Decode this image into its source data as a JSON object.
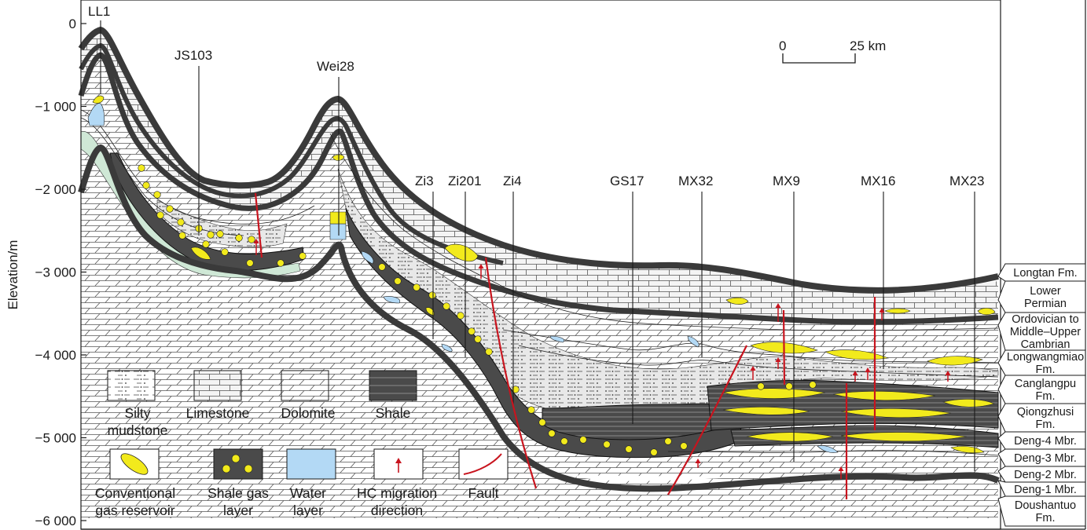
{
  "y_axis": {
    "label": "Elevation/m",
    "ticks": [
      "0",
      "−1 000",
      "−2 000",
      "−3 000",
      "−4 000",
      "−5 000",
      "−6 000"
    ],
    "tick_values": [
      0,
      -1000,
      -2000,
      -3000,
      -4000,
      -5000,
      -6000
    ]
  },
  "wells": [
    {
      "name": "LL1"
    },
    {
      "name": "JS103"
    },
    {
      "name": "Wei28"
    },
    {
      "name": "Zi3"
    },
    {
      "name": "Zi201"
    },
    {
      "name": "Zi4"
    },
    {
      "name": "GS17"
    },
    {
      "name": "MX32"
    },
    {
      "name": "MX9"
    },
    {
      "name": "MX16"
    },
    {
      "name": "MX23"
    }
  ],
  "scale_bar": {
    "start": "0",
    "end": "25 km"
  },
  "formations": [
    {
      "lines": [
        "Longtan Fm."
      ]
    },
    {
      "lines": [
        "Lower",
        "Permian"
      ]
    },
    {
      "lines": [
        "Ordovician to",
        "Middle–Upper",
        "Cambrian"
      ]
    },
    {
      "lines": [
        "Longwangmiao",
        "Fm."
      ]
    },
    {
      "lines": [
        "Canglangpu",
        "Fm."
      ]
    },
    {
      "lines": [
        "Qiongzhusi",
        "Fm."
      ]
    },
    {
      "lines": [
        "Deng-4 Mbr."
      ]
    },
    {
      "lines": [
        "Deng-3 Mbr."
      ]
    },
    {
      "lines": [
        "Deng-2 Mbr."
      ]
    },
    {
      "lines": [
        "Deng-1 Mbr."
      ]
    },
    {
      "lines": [
        "Doushantuo",
        "Fm."
      ]
    }
  ],
  "legend": [
    {
      "key": "silty-mudstone",
      "lines": [
        "Silty",
        "mudstone"
      ]
    },
    {
      "key": "limestone",
      "lines": [
        "Limestone"
      ]
    },
    {
      "key": "dolomite",
      "lines": [
        "Dolomite"
      ]
    },
    {
      "key": "shale",
      "lines": [
        "Shale"
      ]
    },
    {
      "key": "conventional-gas-reservoir",
      "lines": [
        "Conventional",
        "gas reservoir"
      ]
    },
    {
      "key": "shale-gas-layer",
      "lines": [
        "Shale gas",
        "layer"
      ]
    },
    {
      "key": "water-layer",
      "lines": [
        "Water",
        "layer"
      ]
    },
    {
      "key": "hc-migration-direction",
      "lines": [
        "HC migration",
        "direction"
      ]
    },
    {
      "key": "fault",
      "lines": [
        "Fault"
      ]
    }
  ],
  "colors": {
    "shale": "#4a4a4a",
    "shale_band": "#6b6b6b",
    "silty_mudstone": "#e6e6e6",
    "gas": "#f2ea1c",
    "water": "#b3d9f5",
    "fault": "#c8141e",
    "green_rim": "#cfe8d6",
    "outline": "#1a1a1a"
  },
  "icons": [
    "scale-bar-icon",
    "hc-migration-arrow-icon",
    "fault-line-icon",
    "shale-gas-dot-icon"
  ]
}
